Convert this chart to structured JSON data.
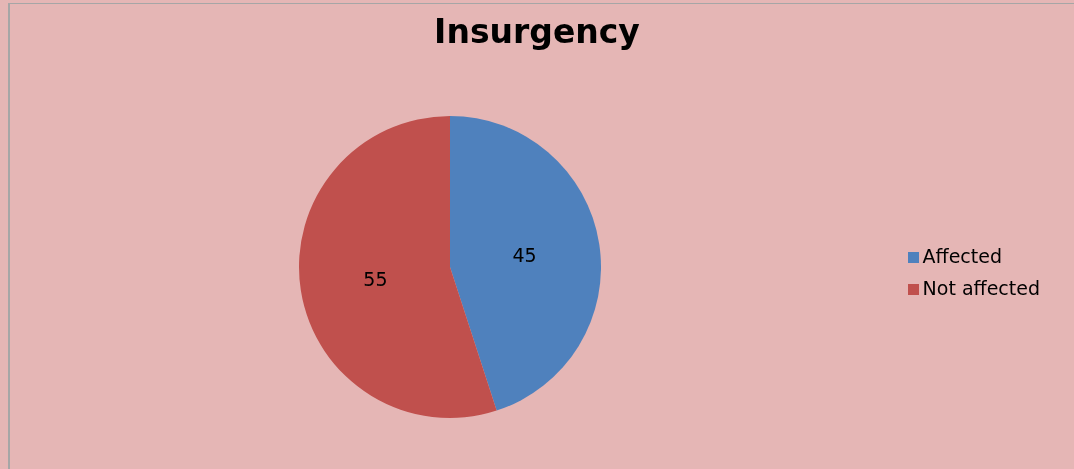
{
  "chart_data": {
    "type": "pie",
    "title": "Insurgency",
    "categories": [
      "Affected",
      "Not affected"
    ],
    "values": [
      45,
      55
    ],
    "colors": [
      "#4f81bd",
      "#c0504d"
    ],
    "data_labels": true,
    "legend": "right"
  }
}
